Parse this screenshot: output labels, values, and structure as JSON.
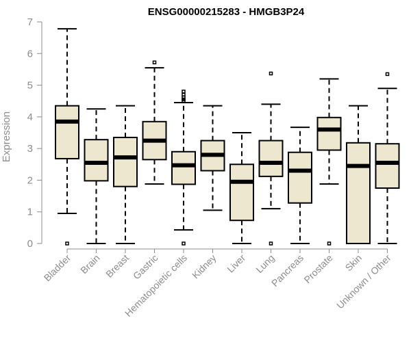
{
  "chart_data": {
    "type": "boxplot",
    "title": "ENSG00000215283 - HMGB3P24",
    "xlabel": "",
    "ylabel": "Expression",
    "ylim": [
      0,
      7
    ],
    "yticks": [
      0,
      1,
      2,
      3,
      4,
      5,
      6,
      7
    ],
    "grid": false,
    "box_color": "#ede7cf",
    "categories": [
      "Bladder",
      "Brain",
      "Breast",
      "Gastric",
      "Hematopoietic cells",
      "Kidney",
      "Liver",
      "Lung",
      "Pancreas",
      "Prostate",
      "Skin",
      "Unknown / Other"
    ],
    "boxes": [
      {
        "category": "Bladder",
        "min": 0.95,
        "q1": 2.68,
        "median": 3.85,
        "q3": 4.35,
        "max": 6.78,
        "outliers": [
          0.0
        ]
      },
      {
        "category": "Brain",
        "min": 0.0,
        "q1": 1.98,
        "median": 2.55,
        "q3": 3.28,
        "max": 4.25,
        "outliers": []
      },
      {
        "category": "Breast",
        "min": 0.0,
        "q1": 1.8,
        "median": 2.72,
        "q3": 3.35,
        "max": 4.35,
        "outliers": []
      },
      {
        "category": "Gastric",
        "min": 1.88,
        "q1": 2.65,
        "median": 3.25,
        "q3": 3.85,
        "max": 5.55,
        "outliers": [
          5.72
        ]
      },
      {
        "category": "Hematopoietic cells",
        "min": 0.43,
        "q1": 1.87,
        "median": 2.47,
        "q3": 2.9,
        "max": 4.45,
        "outliers": [
          0.0,
          4.5,
          4.55,
          4.62,
          4.7,
          4.8
        ]
      },
      {
        "category": "Kidney",
        "min": 1.05,
        "q1": 2.3,
        "median": 2.8,
        "q3": 3.25,
        "max": 4.35,
        "outliers": []
      },
      {
        "category": "Liver",
        "min": 0.0,
        "q1": 0.73,
        "median": 1.95,
        "q3": 2.5,
        "max": 3.5,
        "outliers": []
      },
      {
        "category": "Lung",
        "min": 1.1,
        "q1": 2.12,
        "median": 2.55,
        "q3": 3.25,
        "max": 4.4,
        "outliers": [
          0.0,
          5.37
        ]
      },
      {
        "category": "Pancreas",
        "min": 0.0,
        "q1": 1.28,
        "median": 2.3,
        "q3": 2.88,
        "max": 3.67,
        "outliers": []
      },
      {
        "category": "Prostate",
        "min": 1.88,
        "q1": 2.95,
        "median": 3.6,
        "q3": 3.98,
        "max": 5.2,
        "outliers": [
          0.0
        ]
      },
      {
        "category": "Skin",
        "min": 0.0,
        "q1": 0.0,
        "median": 2.45,
        "q3": 3.18,
        "max": 4.35,
        "outliers": []
      },
      {
        "category": "Unknown / Other",
        "min": 0.0,
        "q1": 1.75,
        "median": 2.55,
        "q3": 3.15,
        "max": 4.9,
        "outliers": [
          5.35
        ]
      }
    ]
  }
}
